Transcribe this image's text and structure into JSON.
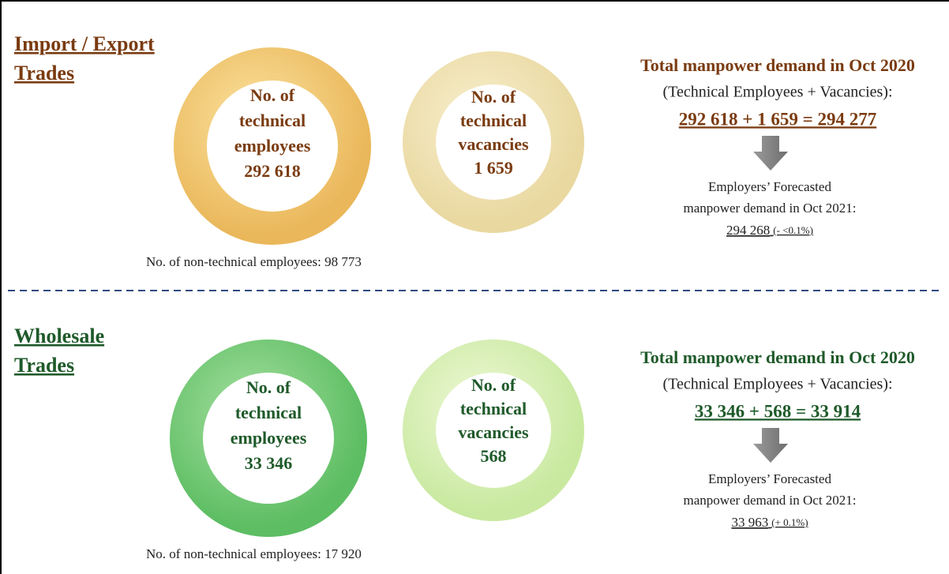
{
  "sections": [
    {
      "title_lines": [
        "Import / Export",
        "Trades"
      ],
      "employees_ring": [
        "No. of",
        "technical",
        "employees",
        "292 618"
      ],
      "vacancies_ring": [
        "No. of",
        "technical",
        "vacancies",
        "1 659"
      ],
      "non_technical": "No. of non-technical employees: 98 773",
      "demand": {
        "heading": "Total manpower demand in Oct 2020",
        "subheading": "(Technical Employees + Vacancies):",
        "equation": "292 618 + 1 659 = 294 277",
        "forecast_lines": [
          "Employers’ Forecasted",
          "manpower demand in Oct 2021:"
        ],
        "forecast_value": "294 268",
        "forecast_change": "(- <0.1%)"
      }
    },
    {
      "title_lines": [
        "Wholesale",
        "Trades"
      ],
      "employees_ring": [
        "No. of",
        "technical",
        "employees",
        "33 346"
      ],
      "vacancies_ring": [
        "No. of",
        "technical",
        "vacancies",
        "568"
      ],
      "non_technical": "No. of non-technical employees: 17 920",
      "demand": {
        "heading": "Total manpower demand in Oct 2020",
        "subheading": "(Technical Employees + Vacancies):",
        "equation": "33 346 + 568 = 33 914",
        "forecast_lines": [
          "Employers’ Forecasted",
          "manpower demand in Oct 2021:"
        ],
        "forecast_value": "33 963",
        "forecast_change": "(+ 0.1%)"
      }
    }
  ]
}
